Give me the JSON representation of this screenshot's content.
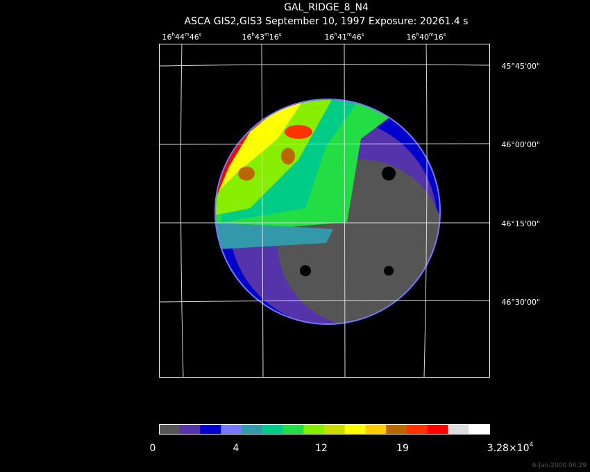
{
  "header": {
    "title": "GAL_RIDGE_8_N4",
    "subtitle": "ASCA GIS2,GIS3 September 10, 1997 Exposure: 20261.4 s"
  },
  "ra_labels": [
    [
      "16",
      "h",
      "44",
      "m",
      "46",
      "s"
    ],
    [
      "16",
      "h",
      "43",
      "m",
      "16",
      "s"
    ],
    [
      "16",
      "h",
      "41",
      "m",
      "46",
      "s"
    ],
    [
      "16",
      "h",
      "40",
      "m",
      "16",
      "s"
    ]
  ],
  "dec_labels": [
    "45°45'00\"",
    "46°00'00\"",
    "46°15'00\"",
    "46°30'00\""
  ],
  "colorbar_labels": [
    "0",
    "4",
    "12",
    "19",
    [
      "3.28×10",
      "4"
    ]
  ],
  "footer": "6-Jan-2000 06:29"
}
